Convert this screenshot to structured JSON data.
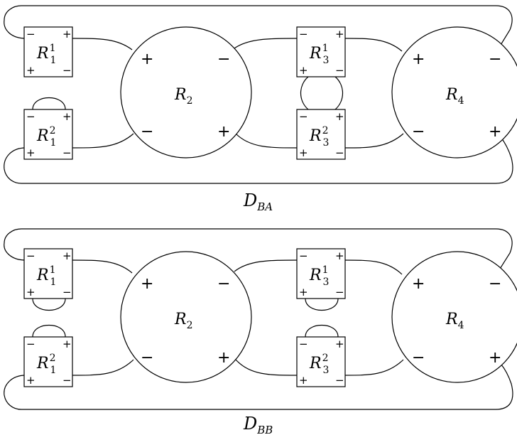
{
  "diagrams": [
    {
      "caption": {
        "main": "D",
        "sub": "BA"
      },
      "boxes": [
        {
          "main": "R",
          "sub": "1",
          "sup": "1"
        },
        {
          "main": "R",
          "sub": "1",
          "sup": "2"
        },
        {
          "main": "R",
          "sub": "3",
          "sup": "1"
        },
        {
          "main": "R",
          "sub": "3",
          "sup": "2"
        }
      ],
      "circles": [
        {
          "main": "R",
          "sub": "2"
        },
        {
          "main": "R",
          "sub": "4"
        }
      ]
    },
    {
      "caption": {
        "main": "D",
        "sub": "BB"
      },
      "boxes": [
        {
          "main": "R",
          "sub": "1",
          "sup": "1"
        },
        {
          "main": "R",
          "sub": "1",
          "sup": "2"
        },
        {
          "main": "R",
          "sub": "3",
          "sup": "1"
        },
        {
          "main": "R",
          "sub": "3",
          "sup": "2"
        }
      ],
      "circles": [
        {
          "main": "R",
          "sub": "2"
        },
        {
          "main": "R",
          "sub": "4"
        }
      ]
    }
  ],
  "signs": {
    "plus": "+",
    "minus": "−"
  }
}
